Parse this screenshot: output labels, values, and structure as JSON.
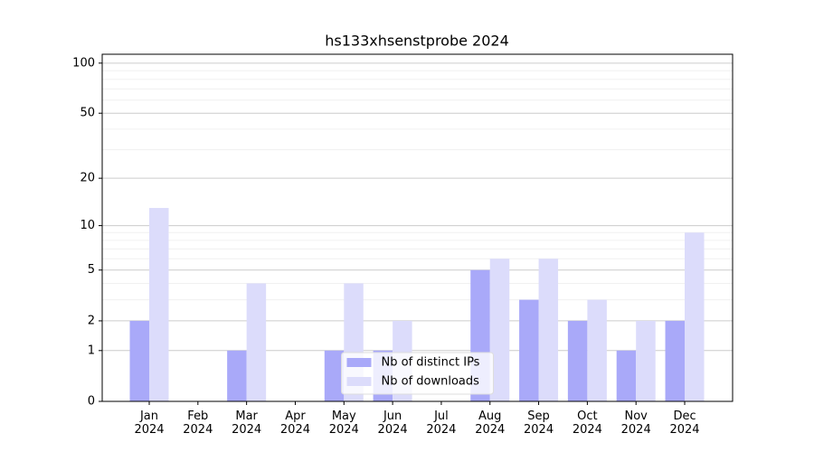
{
  "chart_data": {
    "type": "bar",
    "title": "hs133xhsenstprobe 2024",
    "categories": [
      "Jan\n2024",
      "Feb\n2024",
      "Mar\n2024",
      "Apr\n2024",
      "May\n2024",
      "Jun\n2024",
      "Jul\n2024",
      "Aug\n2024",
      "Sep\n2024",
      "Oct\n2024",
      "Nov\n2024",
      "Dec\n2024"
    ],
    "series": [
      {
        "name": "Nb of distinct IPs",
        "color": "#a9a9f9",
        "values": [
          2,
          0,
          1,
          0,
          1,
          1,
          0,
          5,
          3,
          2,
          1,
          2
        ]
      },
      {
        "name": "Nb of downloads",
        "color": "#dcdcfb",
        "values": [
          13,
          0,
          4,
          0,
          4,
          2,
          0,
          6,
          6,
          3,
          2,
          9
        ]
      }
    ],
    "yscale": "log1p",
    "ylim": [
      0,
      113
    ],
    "yticks": [
      0,
      1,
      2,
      5,
      10,
      20,
      50,
      100
    ],
    "minor_yticks": [
      3,
      4,
      6,
      7,
      8,
      9,
      30,
      40,
      60,
      70,
      80,
      90
    ],
    "grid": true,
    "legend": "lower center"
  }
}
